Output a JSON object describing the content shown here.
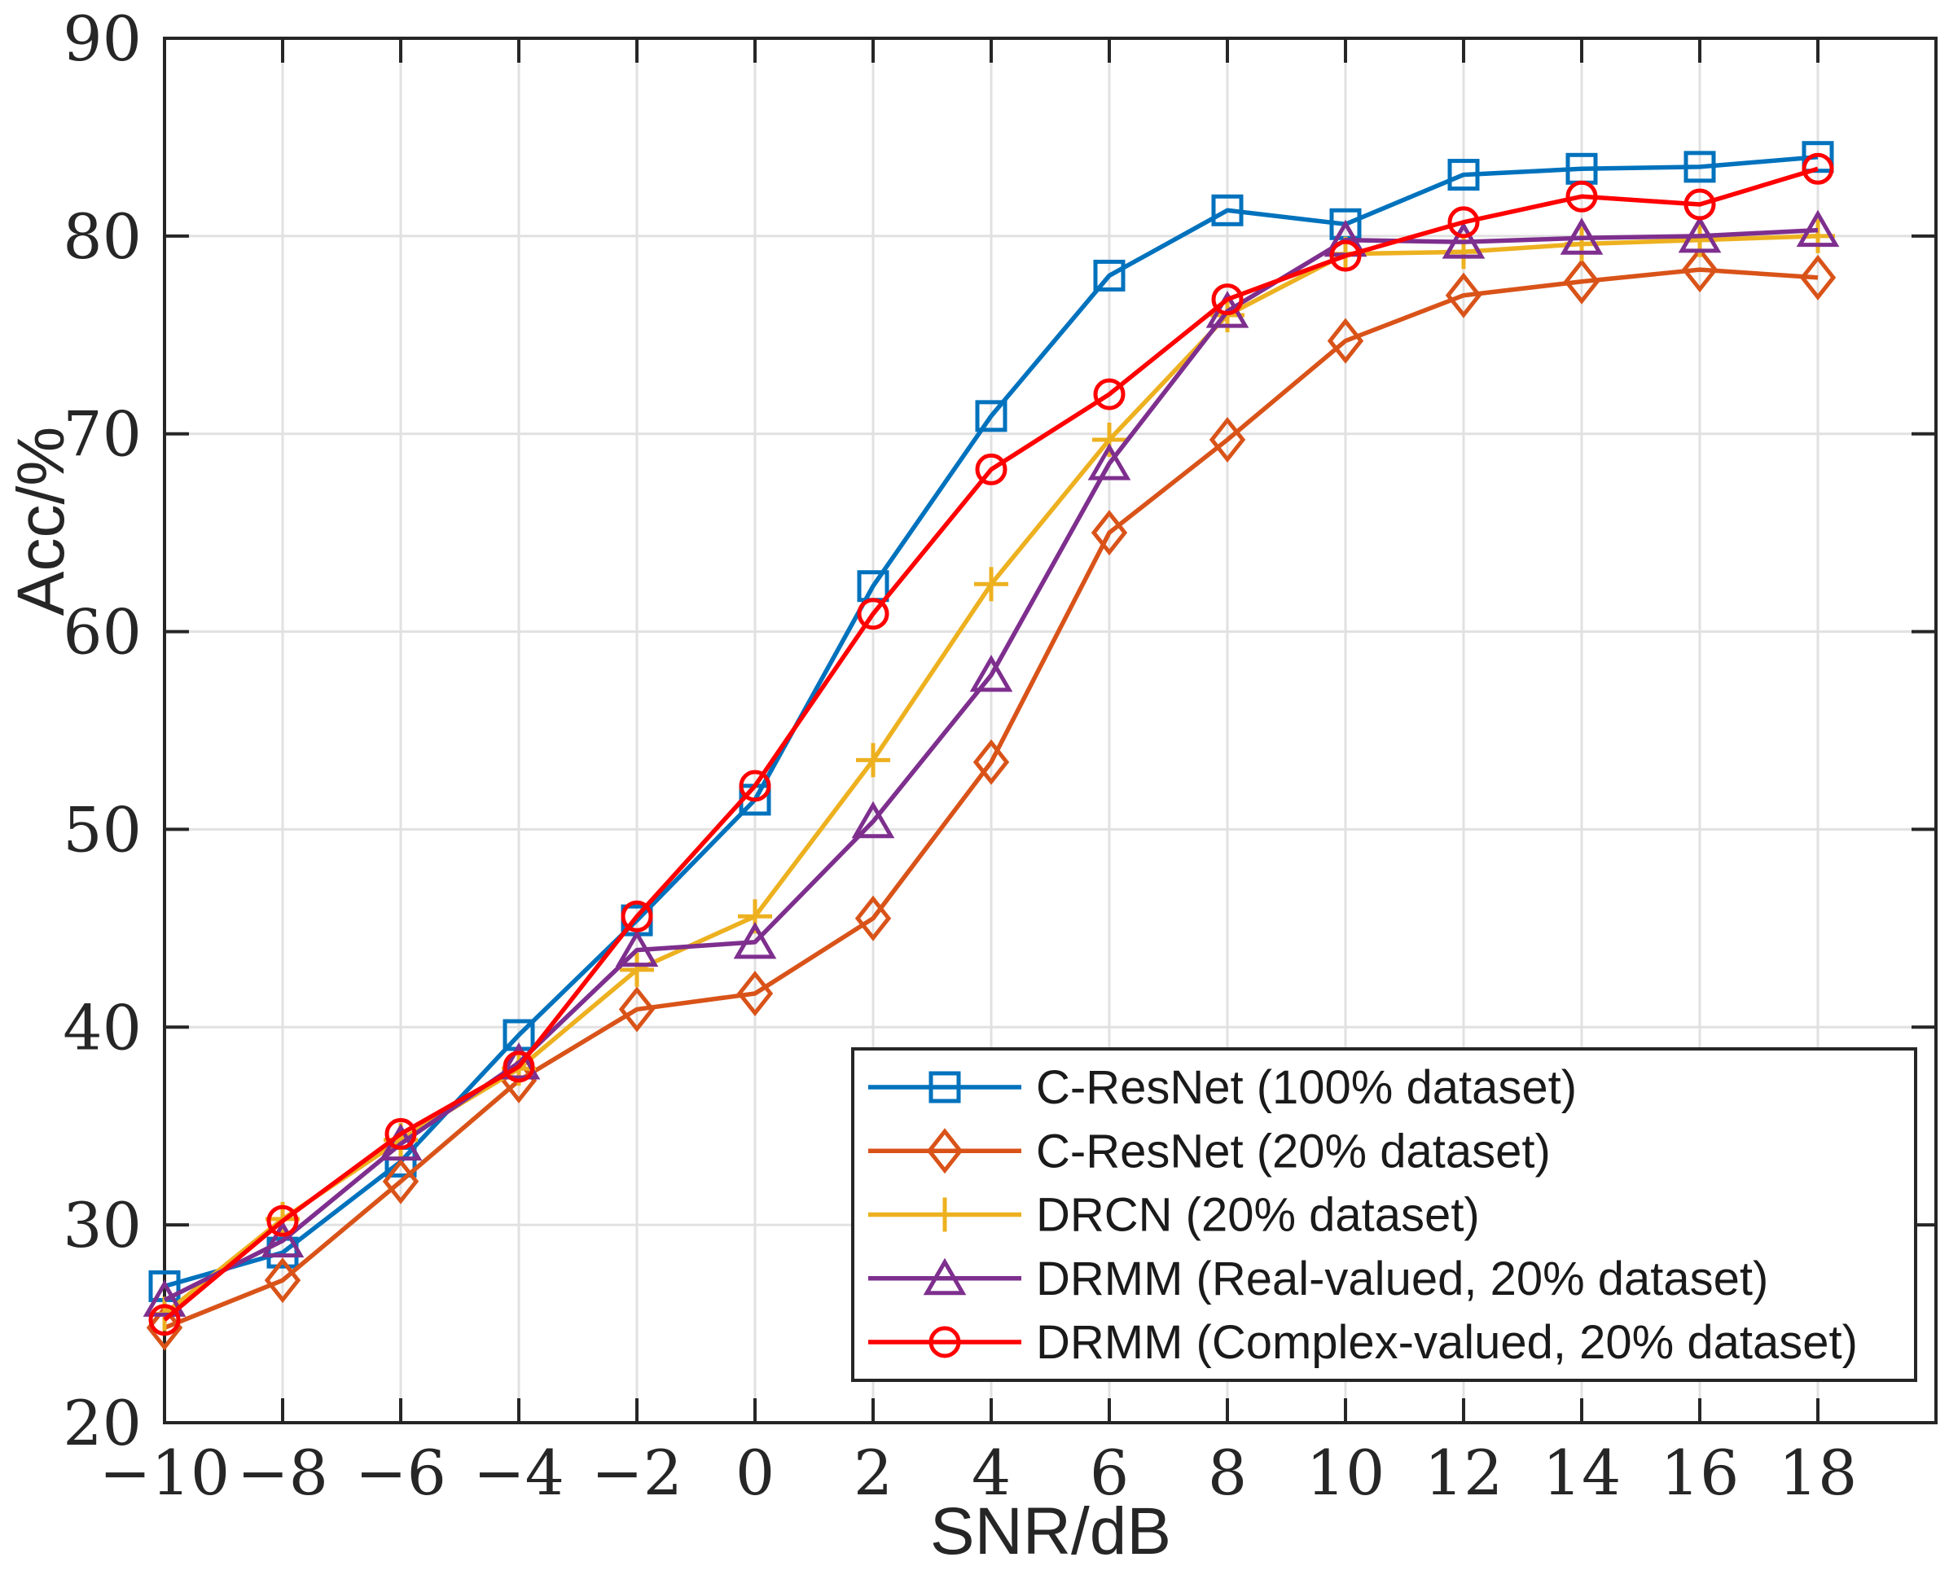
{
  "figure": {
    "background_color": "#ffffff",
    "axis_color": "#262626",
    "grid_color": "#e1e1e1",
    "legend_border_color": "#262626"
  },
  "chart_data": {
    "type": "line",
    "title": "",
    "xlabel": "SNR/dB",
    "ylabel": "Acc/%",
    "xlim": [
      -10,
      20
    ],
    "ylim": [
      20,
      90
    ],
    "grid": true,
    "legend_position": "lower-right-inside",
    "x_ticks": [
      -10,
      -8,
      -6,
      -4,
      -2,
      0,
      2,
      4,
      6,
      8,
      10,
      12,
      14,
      16,
      18
    ],
    "x_tick_labels": [
      "−10",
      "−8",
      "−6",
      "−4",
      "−2",
      "0",
      "2",
      "4",
      "6",
      "8",
      "10",
      "12",
      "14",
      "16",
      "18"
    ],
    "y_ticks": [
      20,
      30,
      40,
      50,
      60,
      70,
      80,
      90
    ],
    "y_tick_labels": [
      "20",
      "30",
      "40",
      "50",
      "60",
      "70",
      "80",
      "90"
    ],
    "x": [
      -10,
      -8,
      -6,
      -4,
      -2,
      0,
      2,
      4,
      6,
      8,
      10,
      12,
      14,
      16,
      18
    ],
    "series": [
      {
        "name": "C-ResNet (100% dataset)",
        "color": "#0072BD",
        "marker": "square",
        "values": [
          26.9,
          28.6,
          33.2,
          39.6,
          45.4,
          51.5,
          62.3,
          70.9,
          78.0,
          81.3,
          80.6,
          83.1,
          83.4,
          83.5,
          84.0
        ]
      },
      {
        "name": "C-ResNet (20% dataset)",
        "color": "#D95319",
        "marker": "diamond",
        "values": [
          24.8,
          27.2,
          32.2,
          37.3,
          40.9,
          41.7,
          45.5,
          53.4,
          65.0,
          69.7,
          74.7,
          77.0,
          77.7,
          78.3,
          77.9
        ]
      },
      {
        "name": "DRCN (20% dataset)",
        "color": "#EDB120",
        "marker": "plus",
        "values": [
          25.5,
          30.3,
          34.3,
          37.9,
          42.9,
          45.6,
          53.5,
          62.4,
          69.7,
          76.0,
          79.1,
          79.2,
          79.6,
          79.8,
          80.0
        ]
      },
      {
        "name": "DRMM (Real-valued, 20% dataset)",
        "color": "#7E2F8E",
        "marker": "triangle",
        "values": [
          26.2,
          29.2,
          34.1,
          38.2,
          43.9,
          44.3,
          50.4,
          57.8,
          68.5,
          76.2,
          79.8,
          79.7,
          79.9,
          80.0,
          80.3
        ]
      },
      {
        "name": "DRMM (Complex-valued, 20% dataset)",
        "color": "#FF0000",
        "marker": "circle",
        "values": [
          25.2,
          30.2,
          34.6,
          38.0,
          45.6,
          52.2,
          60.9,
          68.2,
          72.0,
          76.8,
          79.0,
          80.7,
          82.0,
          81.6,
          83.4
        ]
      }
    ]
  }
}
